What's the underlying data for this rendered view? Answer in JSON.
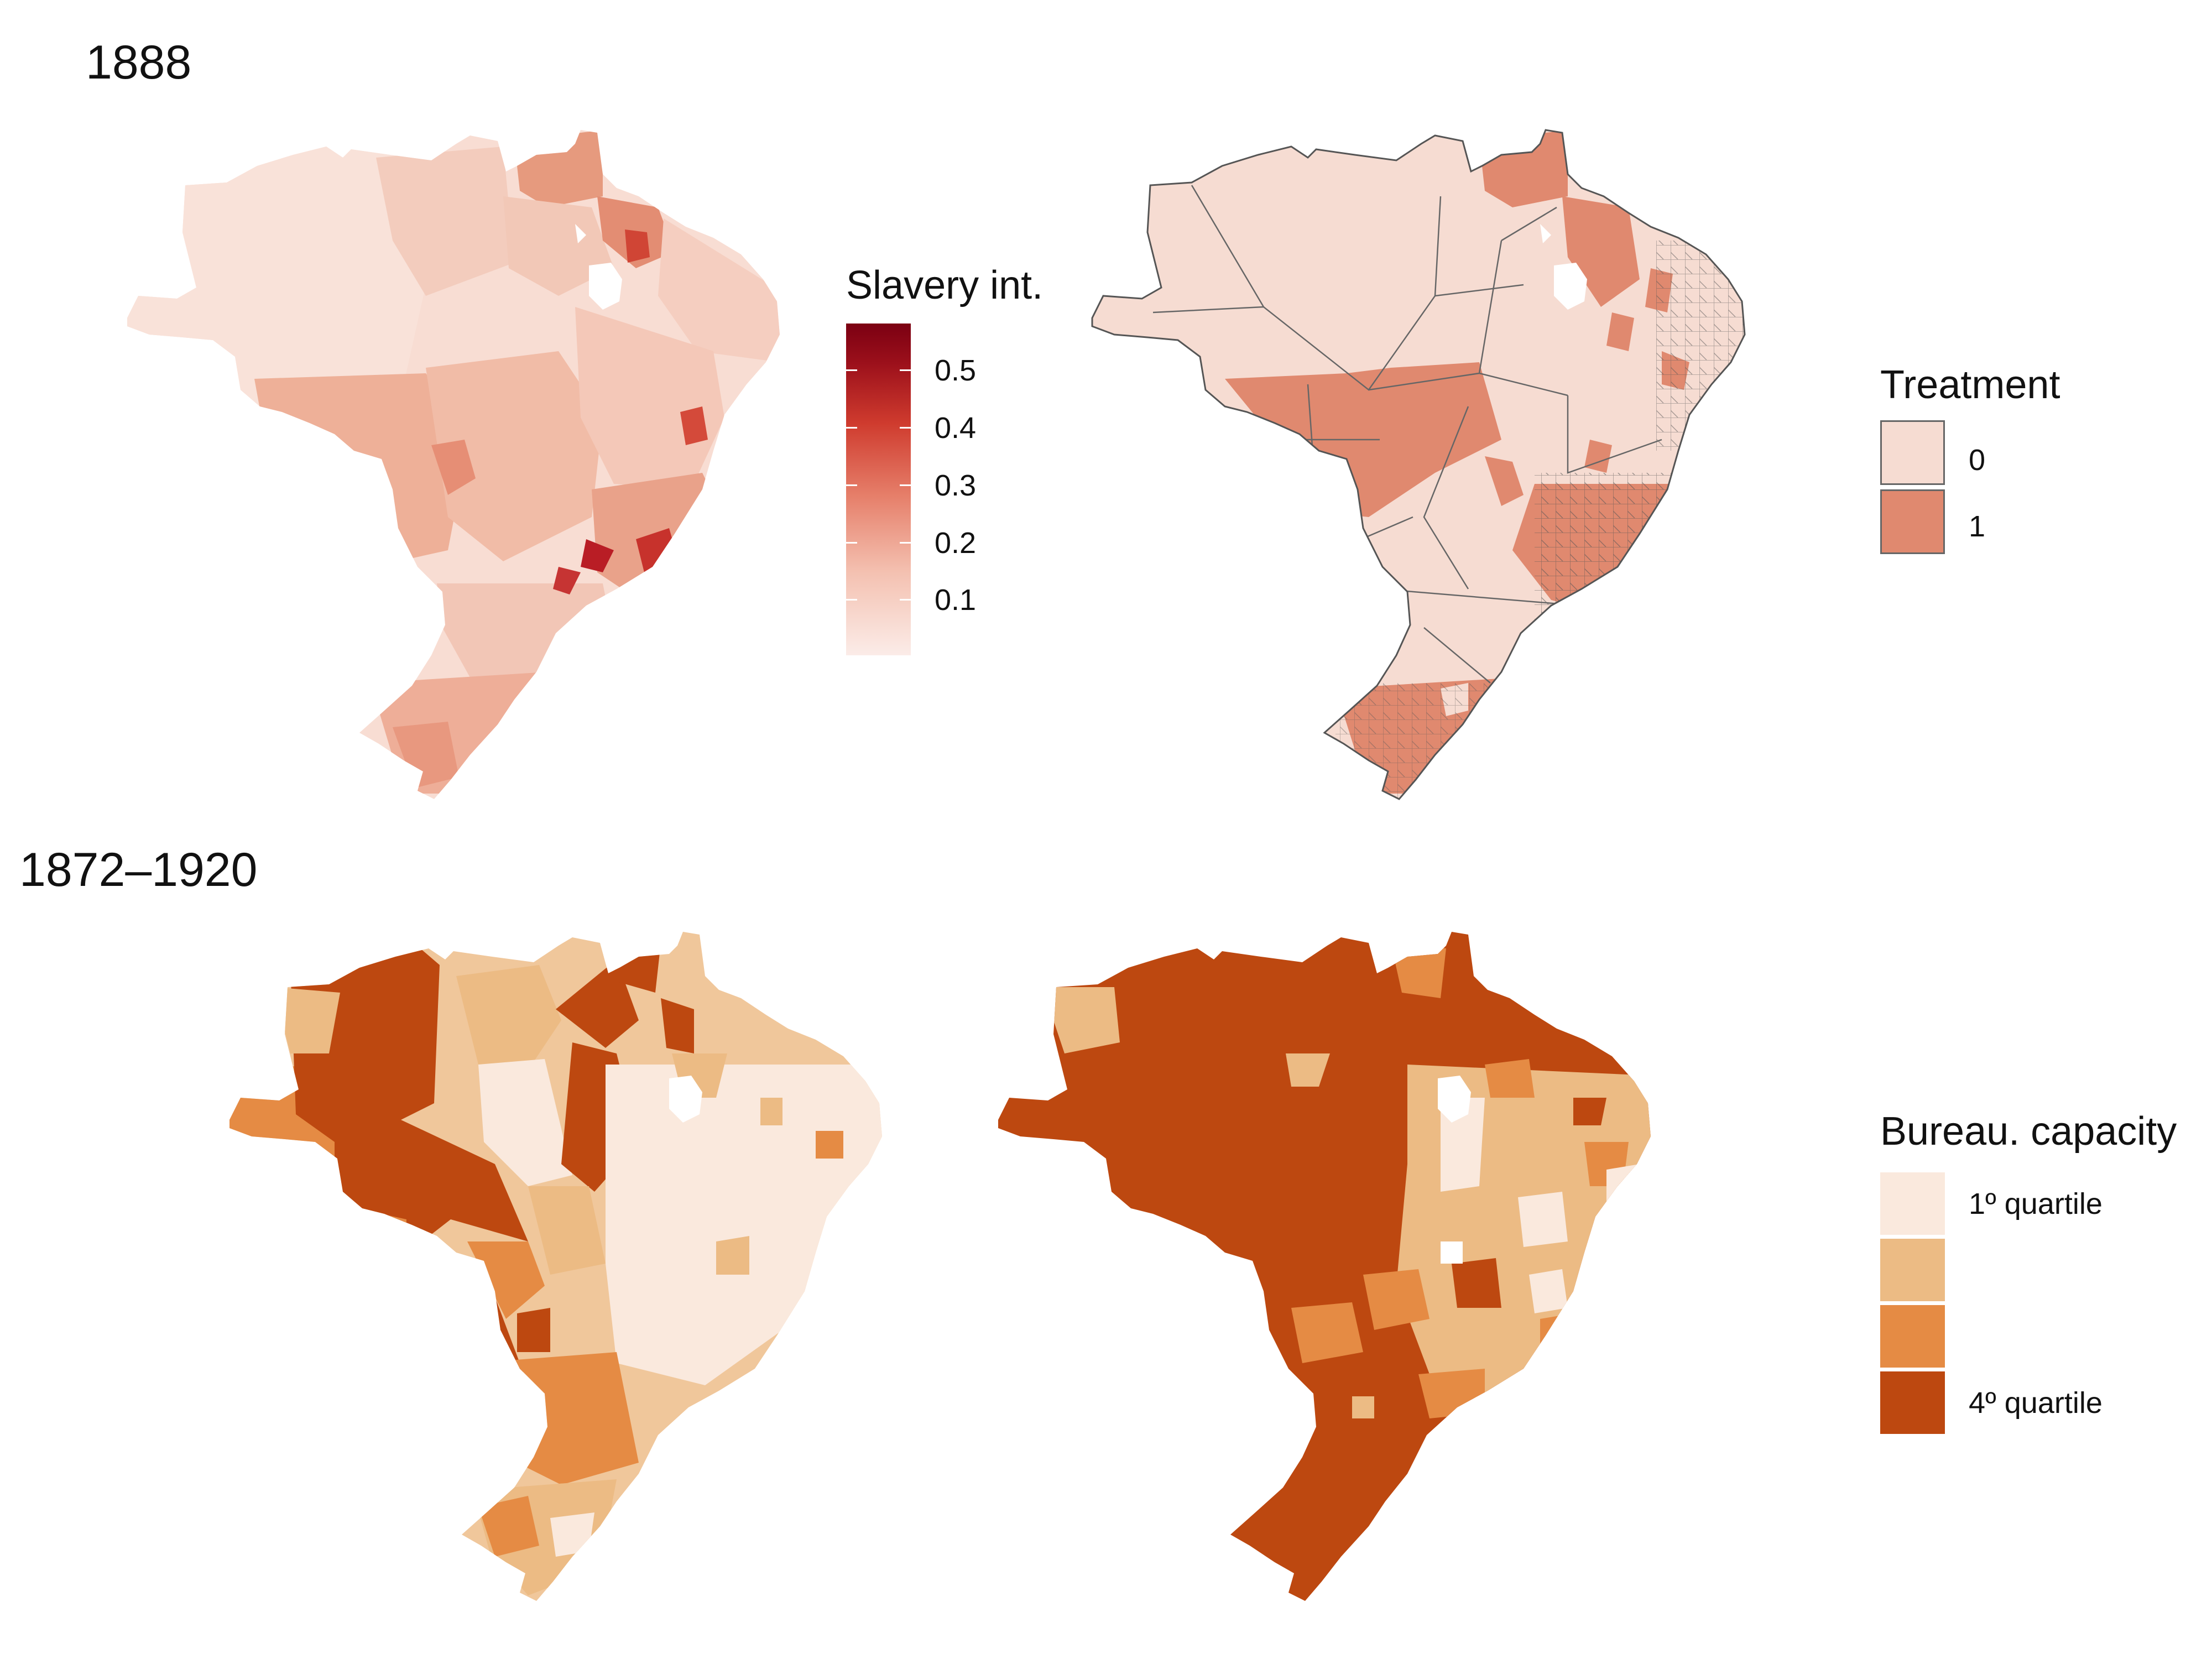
{
  "panels": {
    "top_title": "1888",
    "bottom_title": "1872–1920"
  },
  "legend_slavery": {
    "title": "Slavery int.",
    "ticks": [
      "0.5",
      "0.4",
      "0.3",
      "0.2",
      "0.1"
    ],
    "tick_values": [
      0.5,
      0.4,
      0.3,
      0.2,
      0.1
    ],
    "range": [
      0,
      0.57
    ],
    "colors": [
      "#fbece8",
      "#f4c1b1",
      "#e67f6a",
      "#cf3b2e",
      "#9c101b",
      "#7b0012"
    ]
  },
  "legend_treatment": {
    "title": "Treatment",
    "items": [
      {
        "label": "0",
        "color": "#f6dcd2"
      },
      {
        "label": "1",
        "color": "#e0896f"
      }
    ]
  },
  "legend_capacity": {
    "title": "Bureau. capacity",
    "items": [
      {
        "label": "1º quartile",
        "color": "#fae9dd"
      },
      {
        "label": "",
        "color": "#ecbb84"
      },
      {
        "label": "",
        "color": "#e58b44"
      },
      {
        "label": "4º quartile",
        "color": "#bd4810"
      }
    ]
  }
}
